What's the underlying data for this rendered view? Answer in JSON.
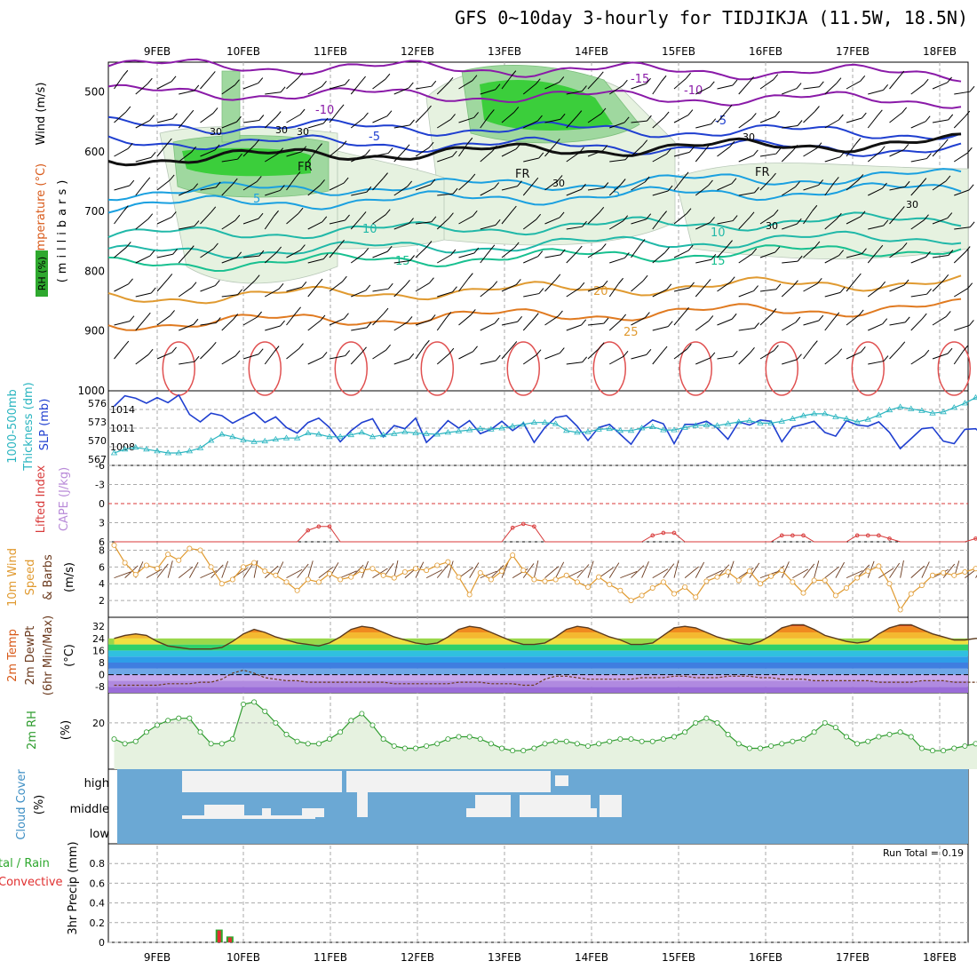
{
  "title": "GFS 0~10day 3-hourly for TIDJIKJA (11.5W, 18.5N)",
  "colors": {
    "slp": "#1f3fd0",
    "thickness": "#2ab5c0",
    "lifted": "#d83a3a",
    "cape": "#b88ad8",
    "wind_speed": "#e09a30",
    "barb": "#6b3a1e",
    "rh2m": "#2e9c2e",
    "rh2m_fill": "#e6f2e0",
    "cloud_bg": "#6ba8d4",
    "cloud": "#f2f2f2",
    "rain_total": "#2ea82e",
    "rain_conv": "#e03030",
    "grid": "#aaaaaa",
    "freezing": "#111111"
  },
  "axes": {
    "date_labels": [
      "9FEB",
      "10FEB",
      "11FEB",
      "12FEB",
      "13FEB",
      "14FEB",
      "15FEB",
      "16FEB",
      "17FEB",
      "18FEB"
    ],
    "pressure_ticks": [
      "500",
      "600",
      "700",
      "800",
      "900",
      "1000"
    ]
  },
  "panel_labels": {
    "upper_wind": "Wind (m/s)",
    "upper_temp": "Temperature (°C)",
    "upper_mb": "(millibars)",
    "upper_rh": "RH (%)",
    "thick_a": "1000-500mb",
    "thick_b": "Thickness (dm)",
    "slp": "SLP (mb)",
    "li": "Lifted Index",
    "cape": "CAPE (J/kg)",
    "wind10_a": "10m Wind",
    "wind10_b": "Speed",
    "wind10_c": "& Barbs",
    "wind10_unit": "(m/s)",
    "t2m_a": "2m Temp",
    "t2m_b": "2m DewPt",
    "t2m_c": "(6hr Min/Max)",
    "t2m_unit": "(°C)",
    "rh2m": "2m RH",
    "rh2m_unit": "(%)",
    "cloud": "Cloud Cover",
    "cloud_unit": "(%)",
    "cloud_high": "high",
    "cloud_middle": "middle",
    "cloud_low": "low",
    "precip_a": "tal / Rain",
    "precip_b": "Convective",
    "precip_c": "3hr Precip (mm)",
    "run_total": "Run Total = 0.19"
  },
  "contour_labels": {
    "temp_upper": [
      "-15",
      "-10",
      "-10",
      "-5",
      "-5",
      "FR",
      "FR",
      "FR",
      "5",
      "5",
      "10",
      "10",
      "15",
      "15",
      "20",
      "25"
    ],
    "rh": [
      "30",
      "30",
      "30",
      "30",
      "30",
      "30",
      "30"
    ]
  },
  "chart_data": [
    {
      "type": "heatmap",
      "name_hint": "upper-air cross section",
      "ylim": [
        1000,
        450
      ],
      "ylabel": "(millibars)",
      "isotherm_labels": [
        -15,
        -10,
        -5,
        5,
        10,
        15,
        20,
        25
      ],
      "freezing_level_mb": 615
    },
    {
      "type": "line",
      "ylabel": "SLP (mb)",
      "ylim_slp": [
        1005,
        1017
      ],
      "slp_ticks": [
        1008,
        1011,
        1014
      ],
      "thickness_ticks": [
        567,
        570,
        573,
        576
      ],
      "series": [
        {
          "name": "SLP (mb)",
          "values": [
            1014.5,
            1016.2,
            1015.8,
            1015.0,
            1015.9,
            1015.1,
            1016.3,
            1013.2,
            1012.0,
            1013.4,
            1013.0,
            1011.8,
            1012.7,
            1013.5,
            1011.9,
            1012.8,
            1011.1,
            1010.2,
            1011.9,
            1012.6,
            1011.1,
            1008.8,
            1010.6,
            1011.9,
            1012.5,
            1009.6,
            1011.4,
            1010.9,
            1012.6,
            1008.7,
            1010.3,
            1012.2,
            1011.0,
            1012.2,
            1010.1,
            1010.8,
            1012.1,
            1010.6,
            1011.8,
            1008.7,
            1011.1,
            1012.7,
            1013.0,
            1011.3,
            1009.0,
            1011.1,
            1011.6,
            1010.0,
            1008.4,
            1011.0,
            1012.3,
            1011.7,
            1008.5,
            1011.6,
            1011.6,
            1012.1,
            1011.0,
            1009.2,
            1012.0,
            1011.5,
            1012.3,
            1012.1,
            1008.8,
            1011.2,
            1011.6,
            1012.1,
            1010.3,
            1009.7,
            1012.2,
            1011.5,
            1011.3,
            1012.0,
            1010.3,
            1007.7,
            1009.3,
            1010.9,
            1011.1,
            1008.9,
            1008.5,
            1010.8,
            1010.9,
            1009.5
          ]
        },
        {
          "name": "1000-500mb Thickness (dm)",
          "values": [
            568.0,
            568.6,
            568.9,
            568.6,
            568.3,
            568.0,
            568.0,
            568.3,
            568.8,
            570.0,
            571.0,
            570.6,
            570.1,
            569.8,
            569.9,
            570.2,
            570.4,
            570.4,
            571.2,
            571.0,
            570.6,
            570.6,
            570.9,
            571.3,
            570.6,
            570.9,
            571.1,
            571.4,
            571.2,
            571.1,
            571.0,
            571.3,
            571.5,
            571.7,
            571.9,
            571.8,
            572.0,
            572.3,
            572.6,
            572.9,
            572.9,
            572.7,
            571.6,
            571.3,
            571.4,
            571.8,
            571.9,
            571.6,
            571.6,
            572.0,
            572.2,
            571.7,
            571.7,
            572.1,
            572.4,
            572.5,
            572.4,
            572.7,
            573.0,
            573.2,
            572.8,
            572.8,
            573.1,
            573.5,
            574.0,
            574.3,
            574.3,
            573.8,
            573.5,
            573.0,
            573.4,
            574.1,
            574.9,
            575.4,
            575.1,
            574.8,
            574.4,
            574.6,
            575.3,
            576.0,
            576.9,
            576.4
          ]
        }
      ]
    },
    {
      "type": "line",
      "ylabel": "Lifted Index / CAPE (J/kg)",
      "ylim": [
        -6,
        6
      ],
      "ticks": [
        -6,
        -3,
        0,
        3,
        6
      ],
      "series": [
        {
          "name": "Lifted Index",
          "values": [
            6,
            6,
            6,
            6,
            6,
            6,
            6,
            6,
            6,
            6,
            6,
            6,
            6,
            6,
            6,
            6,
            6,
            6,
            4.2,
            3.6,
            3.6,
            6,
            6,
            6,
            6,
            6,
            6,
            6,
            6,
            6,
            6,
            6,
            6,
            6,
            6,
            6,
            6,
            3.8,
            3.2,
            3.6,
            6,
            6,
            6,
            6,
            6,
            6,
            6,
            6,
            6,
            6,
            5.0,
            4.6,
            4.6,
            6,
            6,
            6,
            6,
            6,
            6,
            6,
            6,
            6,
            5.0,
            5.0,
            5.0,
            6,
            6,
            6,
            6,
            5.0,
            5.0,
            5.0,
            5.5,
            6,
            6,
            6,
            6,
            6,
            6,
            6,
            5.5,
            5.5
          ]
        }
      ]
    },
    {
      "type": "line",
      "ylabel": "10m Wind Speed (m/s)",
      "ylim": [
        0,
        9
      ],
      "ticks": [
        2,
        4,
        6,
        8
      ],
      "series": [
        {
          "name": "10m Wind Speed",
          "values": [
            8.6,
            6.5,
            5.1,
            6.2,
            5.8,
            7.5,
            6.8,
            8.2,
            8.0,
            6.0,
            4.0,
            4.5,
            6.0,
            6.5,
            5.5,
            5.0,
            4.2,
            3.2,
            4.5,
            4.2,
            5.2,
            4.5,
            4.8,
            5.6,
            5.8,
            5.0,
            4.7,
            5.4,
            5.8,
            5.6,
            6.2,
            6.6,
            4.8,
            2.7,
            5.3,
            4.5,
            5.5,
            7.4,
            5.6,
            4.5,
            4.3,
            4.5,
            5.0,
            4.2,
            3.6,
            4.8,
            3.9,
            3.2,
            2.0,
            2.6,
            3.5,
            4.2,
            2.8,
            3.6,
            2.4,
            4.3,
            4.8,
            5.4,
            4.4,
            5.5,
            4.0,
            4.9,
            5.6,
            4.2,
            2.9,
            4.4,
            4.4,
            2.6,
            3.5,
            4.7,
            5.5,
            6.1,
            4.0,
            0.9,
            2.8,
            3.8,
            5.0,
            5.3,
            5.0,
            5.4,
            5.8,
            4.8
          ]
        }
      ]
    },
    {
      "type": "area",
      "ylabel": "2m Temp (°C)",
      "ylim": [
        -12,
        38
      ],
      "ticks": [
        -8,
        0,
        8,
        16,
        24,
        32
      ],
      "series": [
        {
          "name": "2m Temp",
          "values": [
            24,
            26,
            27,
            26,
            22,
            19,
            18,
            17,
            17,
            17,
            18,
            22,
            27,
            30,
            28,
            25,
            23,
            21,
            20,
            19,
            21,
            25,
            30,
            32,
            31,
            28,
            25,
            23,
            21,
            20,
            21,
            25,
            30,
            32,
            31,
            28,
            25,
            22,
            20,
            20,
            21,
            25,
            30,
            32,
            31,
            28,
            25,
            23,
            20,
            20,
            21,
            26,
            31,
            32,
            31,
            28,
            25,
            23,
            21,
            20,
            22,
            26,
            31,
            33,
            33,
            30,
            26,
            24,
            22,
            21,
            22,
            27,
            31,
            33,
            33,
            30,
            27,
            25,
            23,
            23,
            24,
            24
          ]
        },
        {
          "name": "2m DewPt",
          "values": [
            -7,
            -7,
            -7,
            -7,
            -7,
            -6,
            -6,
            -6,
            -5,
            -5,
            -3,
            1,
            3,
            1,
            -2,
            -3,
            -4,
            -4,
            -5,
            -5,
            -5,
            -5,
            -5,
            -5,
            -5,
            -5,
            -6,
            -6,
            -6,
            -6,
            -6,
            -6,
            -5,
            -5,
            -5,
            -6,
            -6,
            -6,
            -7,
            -7,
            -3,
            -1,
            -1,
            -2,
            -3,
            -3,
            -3,
            -3,
            -3,
            -2,
            -2,
            -2,
            -1,
            -1,
            -2,
            -2,
            -2,
            -1,
            -1,
            -1,
            -2,
            -2,
            -3,
            -3,
            -3,
            -4,
            -4,
            -4,
            -4,
            -4,
            -4,
            -5,
            -5,
            -5,
            -5,
            -4,
            -4,
            -4,
            -5,
            -5,
            -5,
            -5
          ]
        }
      ]
    },
    {
      "type": "area",
      "ylabel": "2m RH (%)",
      "ylim": [
        0,
        33
      ],
      "ticks": [
        20
      ],
      "series": [
        {
          "name": "2m RH",
          "values": [
            13,
            11,
            12,
            16,
            19,
            21,
            22,
            22,
            16,
            11,
            11,
            13,
            28,
            29,
            25,
            20,
            15,
            12,
            11,
            11,
            13,
            16,
            21,
            24,
            19,
            13,
            10,
            9,
            9,
            10,
            11,
            13,
            14,
            14,
            13,
            11,
            9,
            8,
            8,
            9,
            11,
            12,
            12,
            11,
            10,
            11,
            12,
            13,
            13,
            12,
            12,
            13,
            14,
            16,
            20,
            22,
            20,
            15,
            11,
            9,
            9,
            10,
            11,
            12,
            13,
            16,
            20,
            18,
            14,
            11,
            12,
            14,
            15,
            16,
            14,
            9,
            8,
            8,
            9,
            10,
            11,
            13
          ]
        }
      ]
    },
    {
      "type": "heatmap",
      "ylabel": "Cloud Cover (%)",
      "rows": [
        "high",
        "middle",
        "low"
      ]
    },
    {
      "type": "bar",
      "ylabel": "3hr Precip (mm)",
      "ylim": [
        0,
        1.0
      ],
      "ticks": [
        0,
        0.2,
        0.4,
        0.6,
        0.8
      ],
      "series": [
        {
          "name": "Total / Rain",
          "bars": [
            {
              "t": 10,
              "v": 0.13
            },
            {
              "t": 11,
              "v": 0.06
            }
          ]
        },
        {
          "name": "Convective",
          "bars": [
            {
              "t": 10,
              "v": 0.12
            },
            {
              "t": 11,
              "v": 0.05
            }
          ]
        }
      ]
    }
  ]
}
